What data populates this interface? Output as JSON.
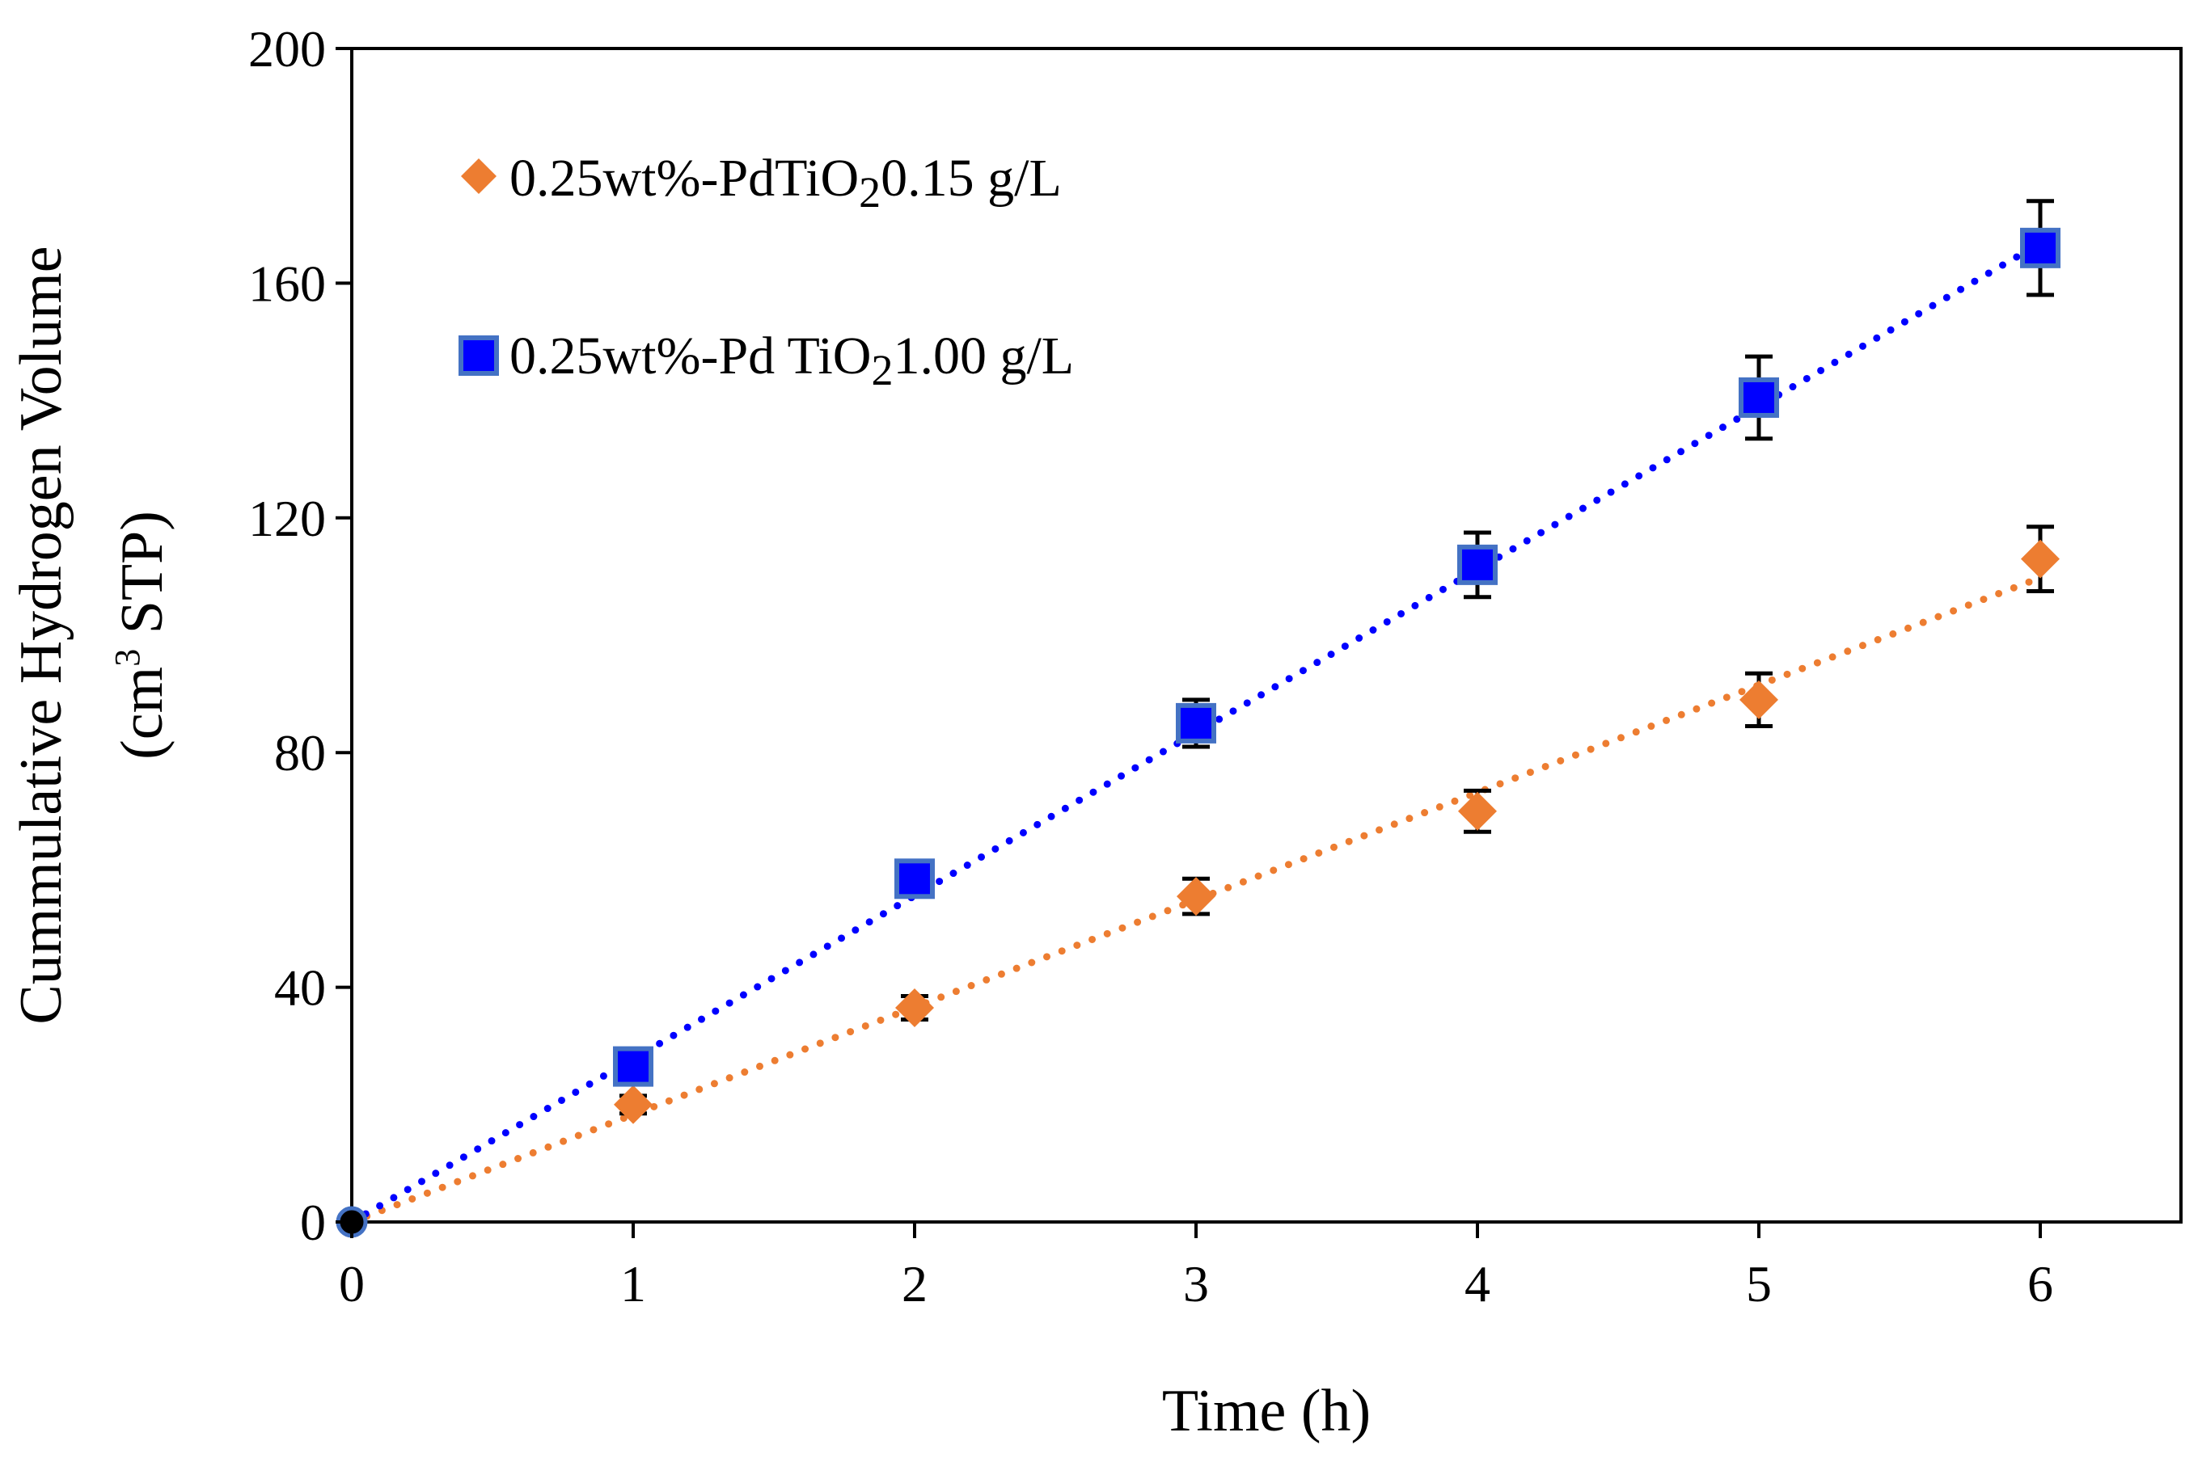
{
  "chart_data": {
    "type": "scatter",
    "title": "",
    "xlabel": "Time (h)",
    "ylabel_line1": "Cummulative Hydrogen Volume",
    "ylabel_line2_pre": "(cm",
    "ylabel_line2_sup": "3",
    "ylabel_line2_post": " STP)",
    "xlim": [
      0,
      6.5
    ],
    "ylim": [
      0,
      200
    ],
    "xticks": [
      0,
      1,
      2,
      3,
      4,
      5,
      6
    ],
    "yticks": [
      0,
      40,
      80,
      120,
      160,
      200
    ],
    "grid": false,
    "legend_position": "top-left",
    "series": [
      {
        "name_pre": "0.25wt%-PdTiO",
        "name_sub": "2",
        "name_post": "0.15 g/L",
        "marker": "diamond",
        "color": "#ED7D31",
        "trendline": "linear-dotted",
        "trend_color": "#ED7D31",
        "trend_slope": 18.3,
        "x": [
          0,
          1,
          2,
          3,
          4,
          5,
          6
        ],
        "y": [
          0,
          20,
          36.5,
          55.5,
          70,
          89,
          113
        ],
        "error": [
          0,
          1.5,
          2,
          3,
          3.5,
          4.5,
          5.5
        ]
      },
      {
        "name_pre": "0.25wt%-Pd TiO",
        "name_sub": "2",
        "name_post": "1.00 g/L",
        "marker": "square",
        "color": "#0000FF",
        "edge_color": "#4472C4",
        "trendline": "linear-dotted",
        "trend_color": "#0000FF",
        "trend_slope": 27.8,
        "x": [
          0,
          1,
          2,
          3,
          4,
          5,
          6
        ],
        "y": [
          0,
          26.5,
          58.5,
          85,
          112,
          140.5,
          166
        ],
        "error": [
          0,
          1.5,
          2,
          4,
          5.5,
          7,
          8
        ]
      }
    ]
  }
}
